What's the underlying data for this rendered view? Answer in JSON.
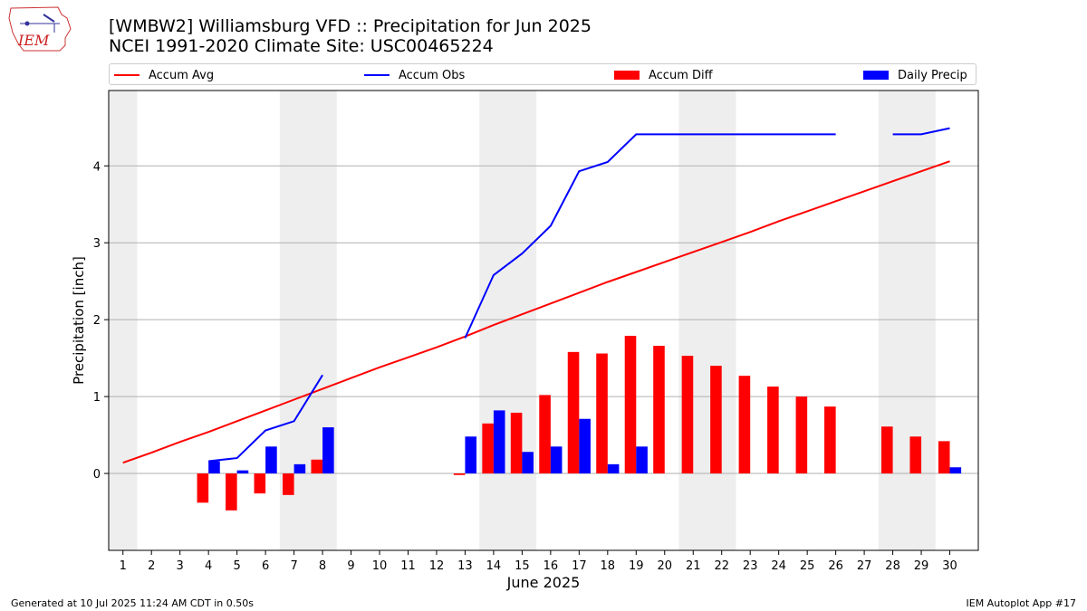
{
  "header": {
    "title_line1": "[WMBW2] Williamsburg VFD :: Precipitation for Jun 2025",
    "title_line2": "NCEI 1991-2020 Climate Site: USC00465224",
    "logo_text": "IEM"
  },
  "footer": {
    "generated": "Generated at 10 Jul 2025 11:24 AM CDT in 0.50s",
    "app": "IEM Autoplot App #17"
  },
  "colors": {
    "avg": "#ff0000",
    "obs": "#0000ff",
    "diff": "#ff0000",
    "daily": "#0000ff",
    "weekend_band": "#eeeeee",
    "grid": "#b0b0b0"
  },
  "chart_data": {
    "type": "bar",
    "xlabel": "June 2025",
    "ylabel": "Precipitation [inch]",
    "xlim": [
      0.5,
      31.0
    ],
    "ylim": [
      -1.0,
      4.98
    ],
    "grid": "horizontal",
    "legend_placement": "top",
    "x": [
      1,
      2,
      3,
      4,
      5,
      6,
      7,
      8,
      9,
      10,
      11,
      12,
      13,
      14,
      15,
      16,
      17,
      18,
      19,
      20,
      21,
      22,
      23,
      24,
      25,
      26,
      27,
      28,
      29,
      30
    ],
    "yticks": [
      0,
      1,
      2,
      3,
      4
    ],
    "weekend_bands": [
      [
        0.5,
        1.5
      ],
      [
        6.5,
        8.5
      ],
      [
        13.5,
        15.5
      ],
      [
        20.5,
        22.5
      ],
      [
        27.5,
        29.5
      ]
    ],
    "series": [
      {
        "name": "Accum Avg",
        "kind": "line",
        "values": [
          0.14,
          0.27,
          0.41,
          0.54,
          0.68,
          0.82,
          0.96,
          1.1,
          1.24,
          1.38,
          1.51,
          1.64,
          1.78,
          1.93,
          2.07,
          2.21,
          2.35,
          2.49,
          2.62,
          2.75,
          2.88,
          3.01,
          3.14,
          3.28,
          3.41,
          3.54,
          3.67,
          3.8,
          3.93,
          4.06
        ]
      },
      {
        "name": "Accum Obs",
        "kind": "line",
        "values": [
          null,
          null,
          null,
          0.16,
          0.2,
          0.56,
          0.68,
          1.28,
          null,
          null,
          null,
          null,
          1.76,
          2.58,
          2.86,
          3.22,
          3.93,
          4.05,
          4.41,
          4.41,
          4.41,
          4.41,
          4.41,
          4.41,
          4.41,
          4.41,
          null,
          4.41,
          4.41,
          4.49
        ]
      },
      {
        "name": "Accum Diff",
        "kind": "bar",
        "values": [
          null,
          null,
          null,
          -0.38,
          -0.48,
          -0.26,
          -0.28,
          0.18,
          null,
          null,
          null,
          null,
          -0.02,
          0.65,
          0.79,
          1.02,
          1.58,
          1.56,
          1.79,
          1.66,
          1.53,
          1.4,
          1.27,
          1.13,
          1.0,
          0.87,
          null,
          0.61,
          0.48,
          0.42
        ]
      },
      {
        "name": "Daily Precip",
        "kind": "bar",
        "values": [
          null,
          null,
          null,
          0.16,
          0.04,
          0.35,
          0.12,
          0.6,
          null,
          null,
          null,
          null,
          0.48,
          0.82,
          0.28,
          0.35,
          0.71,
          0.12,
          0.35,
          0,
          0,
          0,
          0,
          0,
          0,
          0,
          null,
          0,
          0,
          0.08
        ]
      }
    ]
  }
}
